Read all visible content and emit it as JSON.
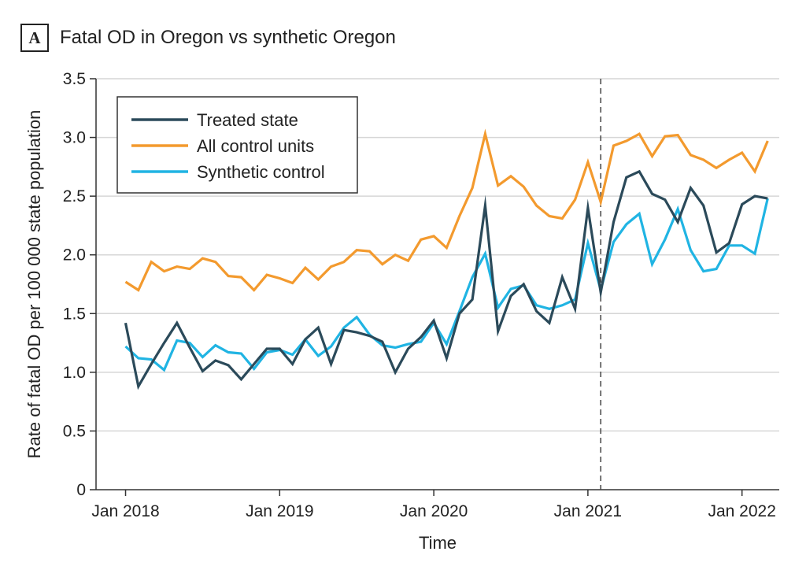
{
  "panel": {
    "letter": "A",
    "title": "Fatal OD in Oregon vs synthetic Oregon"
  },
  "colors": {
    "treated": "#2b4a5a",
    "control": "#f39a2e",
    "synthetic": "#20b4e3",
    "grid": "#d6d6d6",
    "axis": "#333333"
  },
  "chart_data": {
    "type": "line",
    "title": "Fatal OD in Oregon vs synthetic Oregon",
    "xlabel": "Time",
    "ylabel": "Rate of fatal OD per 100 000 state population",
    "ylim": [
      0,
      3.5
    ],
    "yticks": [
      0,
      0.5,
      1.0,
      1.5,
      2.0,
      2.5,
      3.0,
      3.5
    ],
    "ytick_labels": [
      "0",
      "0.5",
      "1.0",
      "1.5",
      "2.0",
      "2.5",
      "3.0",
      "3.5"
    ],
    "x_start": "Jan 2018",
    "x_unit": "month",
    "xlim_months": [
      -2.3,
      50.9
    ],
    "xticks": [
      0,
      12,
      24,
      36,
      48
    ],
    "xtick_labels": [
      "Jan 2018",
      "Jan 2019",
      "Jan 2020",
      "Jan 2021",
      "Jan 2022"
    ],
    "grid": "horizontal",
    "intervention_month": 37,
    "legend_position": "top-left",
    "series": [
      {
        "name": "Treated state",
        "color_key": "treated",
        "values": [
          1.42,
          0.88,
          1.07,
          1.25,
          1.42,
          1.21,
          1.01,
          1.1,
          1.06,
          0.94,
          1.07,
          1.2,
          1.2,
          1.07,
          1.28,
          1.38,
          1.07,
          1.36,
          1.34,
          1.31,
          1.26,
          1.0,
          1.2,
          1.3,
          1.44,
          1.12,
          1.5,
          1.62,
          2.42,
          1.35,
          1.65,
          1.75,
          1.52,
          1.42,
          1.81,
          1.54,
          2.4,
          1.68,
          2.28,
          2.66,
          2.71,
          2.52,
          2.47,
          2.28,
          2.57,
          2.42,
          2.02,
          2.1,
          2.43,
          2.5,
          2.48
        ]
      },
      {
        "name": "All control units",
        "color_key": "control",
        "values": [
          1.77,
          1.7,
          1.94,
          1.86,
          1.9,
          1.88,
          1.97,
          1.94,
          1.82,
          1.81,
          1.7,
          1.83,
          1.8,
          1.76,
          1.89,
          1.79,
          1.9,
          1.94,
          2.04,
          2.03,
          1.92,
          2.0,
          1.95,
          2.13,
          2.16,
          2.06,
          2.33,
          2.57,
          3.03,
          2.59,
          2.67,
          2.58,
          2.42,
          2.33,
          2.31,
          2.47,
          2.79,
          2.45,
          2.93,
          2.97,
          3.03,
          2.84,
          3.01,
          3.02,
          2.85,
          2.81,
          2.74,
          2.81,
          2.87,
          2.71,
          2.97
        ]
      },
      {
        "name": "Synthetic control",
        "color_key": "synthetic",
        "values": [
          1.22,
          1.12,
          1.11,
          1.02,
          1.27,
          1.25,
          1.13,
          1.23,
          1.17,
          1.16,
          1.03,
          1.17,
          1.19,
          1.15,
          1.28,
          1.14,
          1.22,
          1.38,
          1.47,
          1.32,
          1.23,
          1.21,
          1.24,
          1.26,
          1.42,
          1.24,
          1.52,
          1.81,
          2.01,
          1.55,
          1.71,
          1.74,
          1.57,
          1.54,
          1.57,
          1.62,
          2.1,
          1.7,
          2.11,
          2.26,
          2.35,
          1.92,
          2.13,
          2.39,
          2.04,
          1.86,
          1.88,
          2.08,
          2.08,
          2.01,
          2.48
        ]
      }
    ]
  }
}
